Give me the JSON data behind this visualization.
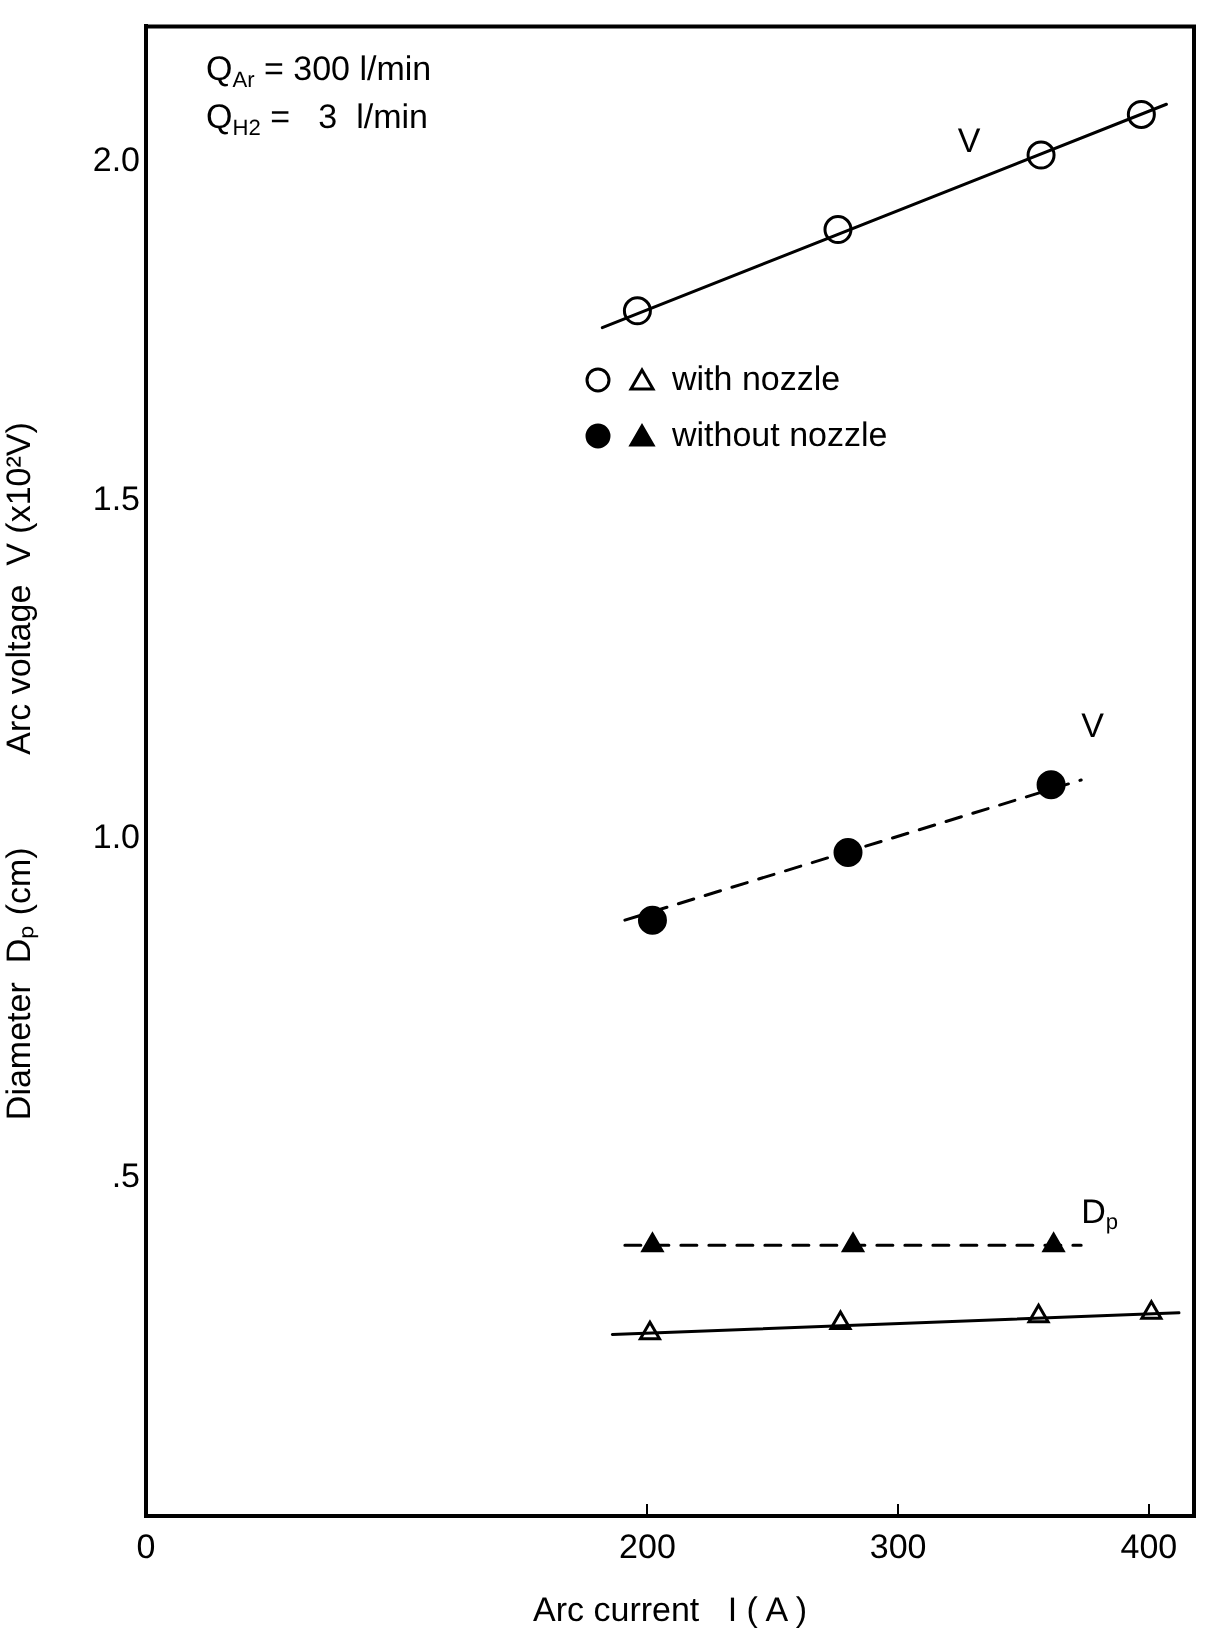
{
  "chart_data": {
    "type": "line",
    "xlabel": "Arc current   I ( A )",
    "ylabel": "Diameter  Dₚ (cm)          Arc voltage  V (x10²V)",
    "xlim": [
      0,
      418
    ],
    "xticks": [
      0,
      200,
      300,
      400
    ],
    "ylim": [
      0,
      2.2
    ],
    "yticks": [
      {
        "value": 0.5,
        "label": ".5"
      },
      {
        "value": 1.0,
        "label": "1.0"
      },
      {
        "value": 1.5,
        "label": "1.5"
      },
      {
        "value": 2.0,
        "label": "2.0"
      }
    ],
    "grid": false,
    "legend": "top right",
    "series": [
      {
        "name": "V",
        "color": "#000000",
        "marker": "none",
        "line_style": "solid",
        "x": [
          182,
          407
        ],
        "values": [
          1.755,
          2.085
        ]
      },
      {
        "name": "V",
        "color": "#000000",
        "marker": "none",
        "line_style": "dashed",
        "x": [
          191,
          373
        ],
        "values": [
          0.88,
          1.087
        ]
      },
      {
        "name": "D$_{p}$",
        "color": "#000000",
        "marker": "none",
        "line_style": "dashed",
        "x": [
          191,
          373
        ],
        "values": [
          0.4,
          0.4
        ]
      },
      {
        "color": "#000000",
        "marker": "none",
        "line_style": "solid",
        "x": [
          186,
          412
        ],
        "values": [
          0.268,
          0.3
        ]
      },
      {
        "name": "with nozzle",
        "type": "scatter",
        "color": "#ffffff",
        "marker": "triangle",
        "x": [
          201,
          277,
          356,
          401
        ],
        "values": [
          0.27,
          0.285,
          0.295,
          0.3
        ]
      },
      {
        "name": "without nozzle",
        "type": "scatter",
        "color": "#000000",
        "marker": "triangle",
        "x": [
          202,
          282,
          362
        ],
        "values": [
          0.4,
          0.4,
          0.4
        ]
      },
      {
        "type": "scatter",
        "color": "#ffffff",
        "marker": "circle",
        "x": [
          196,
          276,
          357,
          397
        ],
        "values": [
          1.78,
          1.9,
          2.01,
          2.07
        ]
      },
      {
        "type": "scatter",
        "color": "#000000",
        "marker": "circle",
        "x": [
          202,
          280,
          361
        ],
        "values": [
          0.88,
          0.98,
          1.08
        ]
      }
    ],
    "annotations": [
      "Q$_{Ar}$ = 300 l/min",
      "Q$_{H2}$ =   3  l/min"
    ]
  }
}
